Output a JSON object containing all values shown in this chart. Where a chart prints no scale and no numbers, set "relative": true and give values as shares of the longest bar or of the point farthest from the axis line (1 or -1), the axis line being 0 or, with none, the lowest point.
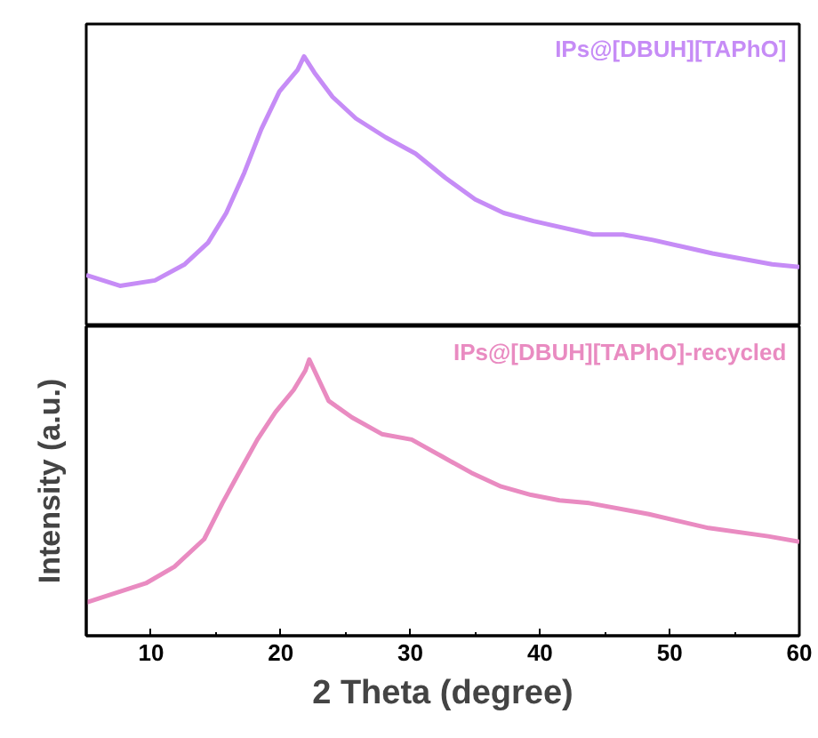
{
  "chart_data": [
    {
      "type": "line",
      "relative": true,
      "legend": false,
      "grid": false,
      "xlim": [
        5,
        60
      ],
      "x": [
        5.0,
        7.6,
        10.3,
        12.6,
        14.4,
        15.8,
        17.2,
        18.5,
        19.9,
        21.3,
        21.8,
        22.6,
        24.0,
        25.8,
        28.1,
        30.4,
        32.7,
        35.0,
        37.2,
        39.5,
        44.1,
        46.4,
        48.7,
        53.3,
        57.9,
        60.0
      ],
      "series": [
        {
          "name": "IPs@[DBUH][TAPhO]",
          "color": "#c68cf6",
          "values": [
            0.19,
            0.15,
            0.17,
            0.23,
            0.31,
            0.42,
            0.57,
            0.73,
            0.87,
            0.95,
            1.0,
            0.94,
            0.85,
            0.77,
            0.7,
            0.64,
            0.55,
            0.47,
            0.42,
            0.39,
            0.34,
            0.34,
            0.32,
            0.27,
            0.23,
            0.22
          ]
        }
      ]
    },
    {
      "type": "line",
      "relative": true,
      "tick_labels": "x",
      "legend": false,
      "grid": false,
      "xlim": [
        5,
        60
      ],
      "xticks": [
        10,
        {
          "value": 15,
          "label": null
        },
        20,
        {
          "value": 25,
          "label": null
        },
        30,
        {
          "value": 35,
          "label": null
        },
        40,
        {
          "value": 45,
          "label": null
        },
        50,
        {
          "value": 55,
          "label": null
        },
        60
      ],
      "xlabel": "2 Theta (degree)",
      "ylabel": "Intensity (a.u.)",
      "x": [
        5.0,
        9.6,
        11.8,
        14.1,
        15.5,
        16.9,
        18.2,
        19.6,
        21.0,
        21.9,
        22.2,
        23.7,
        25.5,
        27.8,
        30.1,
        32.4,
        34.7,
        37.0,
        39.3,
        41.5,
        43.8,
        48.4,
        53.0,
        57.6,
        60.0
      ],
      "series": [
        {
          "name": "IPs@[DBUH][TAPhO]-recycled",
          "color": "#e98bc1",
          "values": [
            0.12,
            0.19,
            0.25,
            0.35,
            0.48,
            0.6,
            0.71,
            0.81,
            0.89,
            0.96,
            1.0,
            0.85,
            0.79,
            0.73,
            0.71,
            0.65,
            0.59,
            0.54,
            0.51,
            0.49,
            0.48,
            0.44,
            0.39,
            0.36,
            0.34
          ]
        }
      ]
    }
  ]
}
